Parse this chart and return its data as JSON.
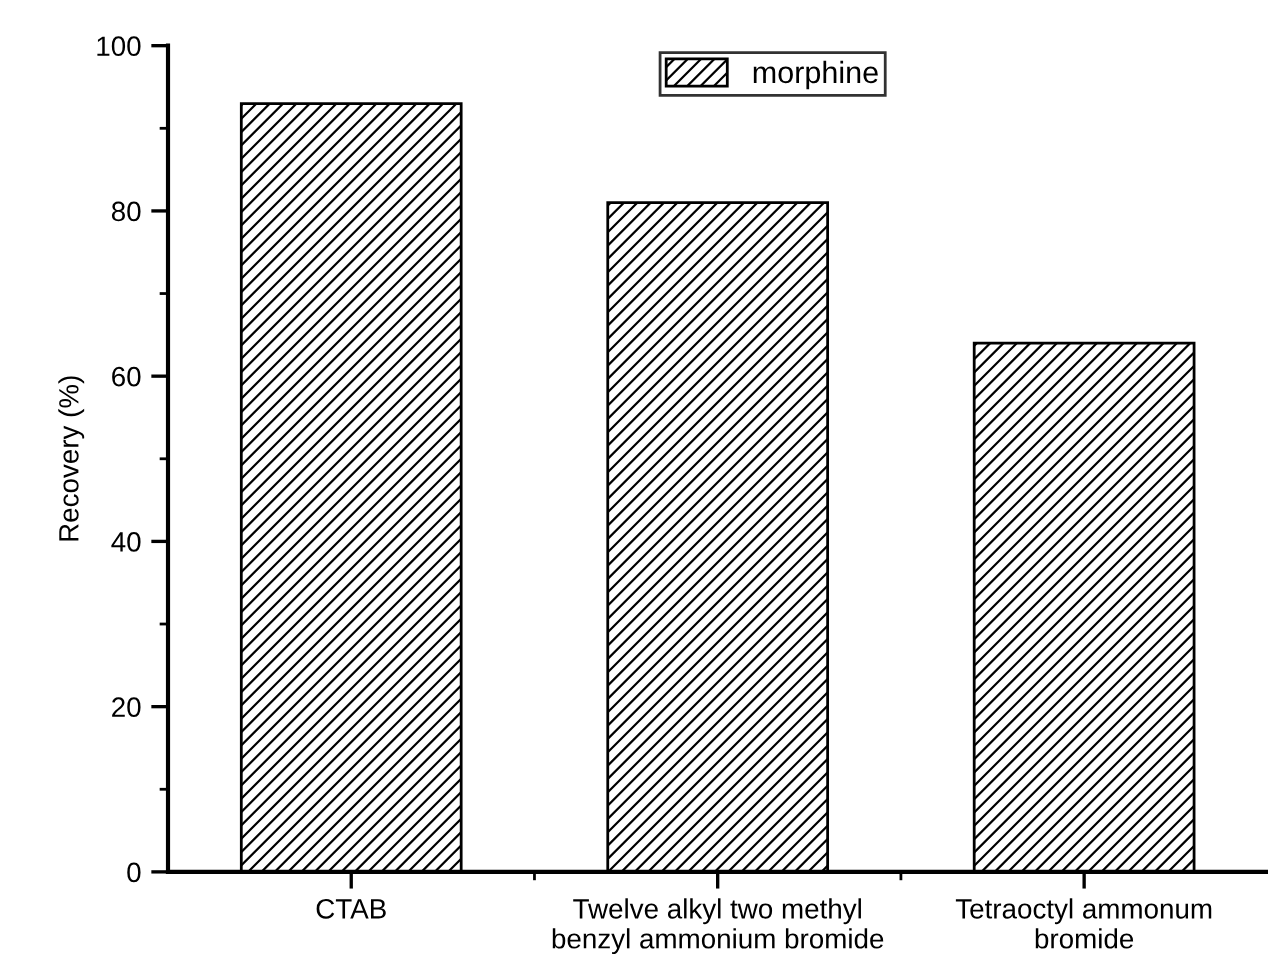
{
  "chart_data": {
    "type": "bar",
    "ylabel": "Recovery (%)",
    "categories": [
      "CTAB",
      "Twelve alkyl two methyl\nbenzyl ammonium bromide",
      "Tetraoctyl ammonum\nbromide"
    ],
    "series": [
      {
        "name": "morphine",
        "color": "#000000",
        "values": [
          93,
          81,
          64
        ]
      }
    ],
    "ylim": [
      0,
      100
    ],
    "yticks": [
      0,
      20,
      40,
      60,
      80,
      100
    ],
    "legend": "top",
    "grid": false
  }
}
